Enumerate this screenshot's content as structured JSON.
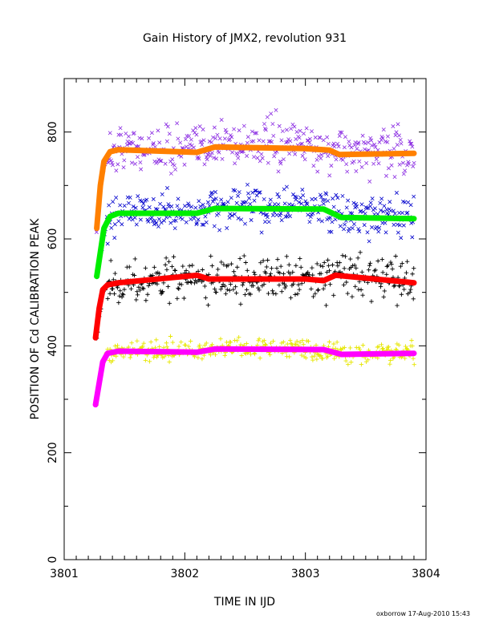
{
  "chart_data": {
    "type": "scatter",
    "title": "Gain History of JMX2, revolution 931",
    "xlabel": "TIME IN IJD",
    "ylabel": "POSITION OF Cd CALIBRATION PEAK",
    "xlim": [
      3801.0,
      3804.0
    ],
    "ylim": [
      0,
      900
    ],
    "x_ticks": [
      3801,
      3802,
      3803,
      3804
    ],
    "x_tick_labels": [
      "3801",
      "3802",
      "3803",
      "3804"
    ],
    "y_ticks": [
      0,
      200,
      400,
      600,
      800
    ],
    "y_tick_labels": [
      "0",
      "200",
      "400",
      "600",
      "800"
    ],
    "grid": false,
    "legend": "none",
    "series": [
      {
        "marker": "x",
        "color": "#8a2be2",
        "kind": "scatter",
        "noise": 22,
        "trend": [
          [
            3801.27,
            615
          ],
          [
            3801.3,
            700
          ],
          [
            3801.35,
            755
          ],
          [
            3801.45,
            770
          ],
          [
            3802.15,
            770
          ],
          [
            3802.3,
            780
          ],
          [
            3803.0,
            778
          ],
          [
            3803.25,
            765
          ],
          [
            3803.5,
            765
          ],
          [
            3803.9,
            758
          ]
        ]
      },
      {
        "marker": "line",
        "color": "#ff8000",
        "kind": "fit",
        "points": [
          [
            3801.27,
            620
          ],
          [
            3801.3,
            700
          ],
          [
            3801.33,
            745
          ],
          [
            3801.38,
            763
          ],
          [
            3801.45,
            767
          ],
          [
            3802.1,
            762
          ],
          [
            3802.25,
            772
          ],
          [
            3802.5,
            771
          ],
          [
            3803.0,
            769
          ],
          [
            3803.2,
            766
          ],
          [
            3803.28,
            758
          ],
          [
            3803.9,
            760
          ]
        ]
      },
      {
        "marker": "x",
        "color": "#0000cd",
        "kind": "scatter",
        "noise": 18,
        "trend": [
          [
            3801.3,
            560
          ],
          [
            3801.33,
            620
          ],
          [
            3801.4,
            650
          ],
          [
            3801.9,
            650
          ],
          [
            3802.1,
            648
          ],
          [
            3802.25,
            658
          ],
          [
            3803.1,
            660
          ],
          [
            3803.3,
            640
          ],
          [
            3803.9,
            638
          ]
        ]
      },
      {
        "marker": "line",
        "color": "#00ee00",
        "kind": "fit",
        "points": [
          [
            3801.27,
            530
          ],
          [
            3801.3,
            575
          ],
          [
            3801.33,
            620
          ],
          [
            3801.38,
            642
          ],
          [
            3801.45,
            648
          ],
          [
            3802.1,
            648
          ],
          [
            3802.25,
            657
          ],
          [
            3803.15,
            656
          ],
          [
            3803.3,
            640
          ],
          [
            3803.9,
            638
          ]
        ]
      },
      {
        "marker": "+",
        "color": "#000000",
        "kind": "scatter",
        "noise": 18,
        "trend": [
          [
            3801.27,
            420
          ],
          [
            3801.3,
            480
          ],
          [
            3801.33,
            510
          ],
          [
            3801.4,
            515
          ],
          [
            3802.0,
            528
          ],
          [
            3802.5,
            522
          ],
          [
            3803.0,
            528
          ],
          [
            3803.3,
            532
          ],
          [
            3803.9,
            520
          ]
        ]
      },
      {
        "marker": "line",
        "color": "#ff0000",
        "kind": "fit",
        "points": [
          [
            3801.26,
            415
          ],
          [
            3801.29,
            470
          ],
          [
            3801.32,
            505
          ],
          [
            3801.36,
            514
          ],
          [
            3801.45,
            518
          ],
          [
            3802.1,
            532
          ],
          [
            3802.2,
            525
          ],
          [
            3802.5,
            525
          ],
          [
            3803.0,
            525
          ],
          [
            3803.15,
            522
          ],
          [
            3803.25,
            532
          ],
          [
            3803.9,
            518
          ]
        ]
      },
      {
        "marker": "+",
        "color": "#e6e600",
        "kind": "scatter",
        "noise": 9,
        "trend": [
          [
            3801.27,
            295
          ],
          [
            3801.3,
            350
          ],
          [
            3801.35,
            385
          ],
          [
            3801.45,
            392
          ],
          [
            3802.0,
            390
          ],
          [
            3802.3,
            395
          ],
          [
            3803.0,
            395
          ],
          [
            3803.3,
            385
          ],
          [
            3803.9,
            388
          ]
        ]
      },
      {
        "marker": "line",
        "color": "#ff00ff",
        "kind": "fit",
        "points": [
          [
            3801.26,
            290
          ],
          [
            3801.29,
            330
          ],
          [
            3801.32,
            370
          ],
          [
            3801.36,
            386
          ],
          [
            3801.45,
            390
          ],
          [
            3802.1,
            388
          ],
          [
            3802.25,
            394
          ],
          [
            3803.15,
            393
          ],
          [
            3803.3,
            384
          ],
          [
            3803.9,
            386
          ]
        ]
      }
    ]
  },
  "footer": {
    "credit": "oxborrow 17-Aug-2010 15:43"
  }
}
